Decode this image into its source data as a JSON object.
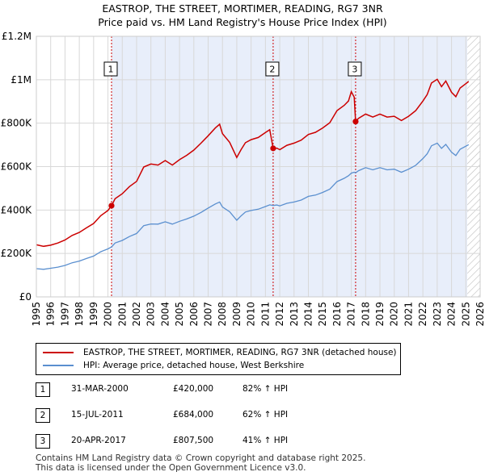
{
  "title": {
    "line1": "EASTROP, THE STREET, MORTIMER, READING, RG7 3NR",
    "line2": "Price paid vs. HM Land Registry's House Price Index (HPI)"
  },
  "colors": {
    "property": "#cc0000",
    "hpi": "#5a8fcf",
    "shade": "#e8eefa",
    "marker_line": "#cc0000"
  },
  "chart_data": {
    "type": "line",
    "xlim": [
      1995,
      2026
    ],
    "ylim": [
      0,
      1200000
    ],
    "x_ticks": [
      "1995",
      "1996",
      "1997",
      "1998",
      "1999",
      "2000",
      "2001",
      "2002",
      "2003",
      "2004",
      "2005",
      "2006",
      "2007",
      "2008",
      "2009",
      "2010",
      "2011",
      "2012",
      "2013",
      "2014",
      "2015",
      "2016",
      "2017",
      "2018",
      "2019",
      "2020",
      "2021",
      "2022",
      "2023",
      "2024",
      "2025",
      "2026"
    ],
    "y_ticks": [
      {
        "value": 0,
        "label": "£0"
      },
      {
        "value": 200000,
        "label": "£200K"
      },
      {
        "value": 400000,
        "label": "£400K"
      },
      {
        "value": 600000,
        "label": "£600K"
      },
      {
        "value": 800000,
        "label": "£800K"
      },
      {
        "value": 1000000,
        "label": "£1M"
      },
      {
        "value": 1200000,
        "label": "£1.2M"
      }
    ],
    "shaded_from": 2000.25,
    "hatched_from": 2025.1,
    "series": [
      {
        "name": "EASTROP, THE STREET, MORTIMER, READING, RG7 3NR (detached house)",
        "x": [
          1995.0,
          1995.5,
          1996.0,
          1996.5,
          1997.0,
          1997.5,
          1998.0,
          1998.5,
          1999.0,
          1999.5,
          2000.0,
          2000.25,
          2000.5,
          2001.0,
          2001.5,
          2002.0,
          2002.5,
          2003.0,
          2003.5,
          2004.0,
          2004.5,
          2005.0,
          2005.5,
          2006.0,
          2006.5,
          2007.0,
          2007.5,
          2007.8,
          2008.0,
          2008.5,
          2009.0,
          2009.3,
          2009.6,
          2010.0,
          2010.5,
          2011.0,
          2011.3,
          2011.54,
          2011.8,
          2012.0,
          2012.5,
          2013.0,
          2013.5,
          2014.0,
          2014.5,
          2015.0,
          2015.5,
          2016.0,
          2016.5,
          2016.8,
          2017.0,
          2017.2,
          2017.3,
          2017.5,
          2018.0,
          2018.5,
          2019.0,
          2019.5,
          2020.0,
          2020.5,
          2021.0,
          2021.5,
          2022.0,
          2022.3,
          2022.6,
          2023.0,
          2023.3,
          2023.6,
          2024.0,
          2024.3,
          2024.6,
          2025.0,
          2025.2
        ],
        "values": [
          240000,
          233000,
          238000,
          248000,
          262000,
          283000,
          297000,
          318000,
          338000,
          374000,
          398000,
          420000,
          452000,
          475000,
          508000,
          532000,
          598000,
          612000,
          607000,
          628000,
          607000,
          632000,
          652000,
          676000,
          708000,
          742000,
          778000,
          795000,
          752000,
          712000,
          642000,
          678000,
          710000,
          724000,
          734000,
          757000,
          770000,
          684000,
          685000,
          678000,
          698000,
          708000,
          722000,
          748000,
          758000,
          778000,
          802000,
          858000,
          882000,
          902000,
          945000,
          920000,
          807500,
          822000,
          842000,
          828000,
          842000,
          828000,
          832000,
          812000,
          832000,
          858000,
          902000,
          932000,
          985000,
          1002000,
          968000,
          994000,
          942000,
          922000,
          962000,
          982000,
          992000
        ]
      },
      {
        "name": "HPI: Average price, detached house, West Berkshire",
        "x": [
          1995.0,
          1995.5,
          1996.0,
          1996.5,
          1997.0,
          1997.5,
          1998.0,
          1998.5,
          1999.0,
          1999.5,
          2000.0,
          2000.25,
          2000.5,
          2001.0,
          2001.5,
          2002.0,
          2002.5,
          2003.0,
          2003.5,
          2004.0,
          2004.5,
          2005.0,
          2005.5,
          2006.0,
          2006.5,
          2007.0,
          2007.5,
          2007.8,
          2008.0,
          2008.5,
          2009.0,
          2009.3,
          2009.6,
          2010.0,
          2010.5,
          2011.0,
          2011.3,
          2011.54,
          2011.8,
          2012.0,
          2012.5,
          2013.0,
          2013.5,
          2014.0,
          2014.5,
          2015.0,
          2015.5,
          2016.0,
          2016.5,
          2016.8,
          2017.0,
          2017.2,
          2017.3,
          2017.5,
          2018.0,
          2018.5,
          2019.0,
          2019.5,
          2020.0,
          2020.5,
          2021.0,
          2021.5,
          2022.0,
          2022.3,
          2022.6,
          2023.0,
          2023.3,
          2023.6,
          2024.0,
          2024.3,
          2024.6,
          2025.0,
          2025.2
        ],
        "values": [
          130000,
          127000,
          132000,
          137000,
          145000,
          157000,
          165000,
          177000,
          188000,
          208000,
          221000,
          230000,
          248000,
          260000,
          278000,
          292000,
          328000,
          336000,
          335000,
          346000,
          335000,
          348000,
          359000,
          372000,
          389000,
          409000,
          428000,
          437000,
          414000,
          392000,
          353000,
          373000,
          391000,
          398000,
          404000,
          416000,
          424000,
          421000,
          423000,
          419000,
          431000,
          437000,
          446000,
          463000,
          469000,
          481000,
          496000,
          531000,
          546000,
          558000,
          570000,
          574000,
          571000,
          581000,
          595000,
          585000,
          595000,
          585000,
          588000,
          574000,
          588000,
          606000,
          637000,
          659000,
          696000,
          708000,
          684000,
          702000,
          666000,
          651000,
          680000,
          694000,
          701000
        ]
      }
    ],
    "sale_markers": [
      {
        "label": "1",
        "x": 2000.25,
        "value": 420000
      },
      {
        "label": "2",
        "x": 2011.54,
        "value": 684000
      },
      {
        "label": "3",
        "x": 2017.3,
        "value": 807500
      }
    ]
  },
  "legend": {
    "items": [
      "EASTROP, THE STREET, MORTIMER, READING, RG7 3NR (detached house)",
      "HPI: Average price, detached house, West Berkshire"
    ]
  },
  "sales": [
    {
      "num": "1",
      "date": "31-MAR-2000",
      "price": "£420,000",
      "hpi": "82% ↑ HPI"
    },
    {
      "num": "2",
      "date": "15-JUL-2011",
      "price": "£684,000",
      "hpi": "62% ↑ HPI"
    },
    {
      "num": "3",
      "date": "20-APR-2017",
      "price": "£807,500",
      "hpi": "41% ↑ HPI"
    }
  ],
  "footer": {
    "line1": "Contains HM Land Registry data © Crown copyright and database right 2025.",
    "line2": "This data is licensed under the Open Government Licence v3.0."
  }
}
